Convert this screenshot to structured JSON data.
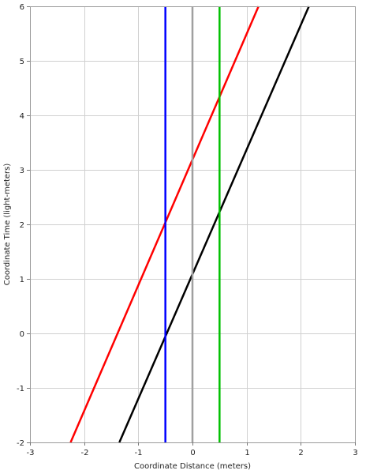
{
  "chart_data": {
    "type": "line",
    "title": "",
    "xlabel": "Coordinate Distance (meters)",
    "ylabel": "Coordinate Time (light-meters)",
    "xlim": [
      -3,
      3
    ],
    "ylim": [
      -2,
      6
    ],
    "xticks": [
      -3,
      -2,
      -1,
      0,
      1,
      2,
      3
    ],
    "yticks": [
      -2,
      -1,
      0,
      1,
      2,
      3,
      4,
      5,
      6
    ],
    "grid": true,
    "legend": "none",
    "series": [
      {
        "color": "#000000",
        "x": [
          -1.35,
          2.15
        ],
        "y": [
          -2,
          6
        ]
      },
      {
        "color": "#ff0000",
        "x": [
          -2.25,
          1.22
        ],
        "y": [
          -2,
          6
        ]
      },
      {
        "color": "#0000ff",
        "x": [
          -0.5,
          -0.5
        ],
        "y": [
          -2,
          6
        ]
      },
      {
        "color": "#a0a0a0",
        "x": [
          0,
          0
        ],
        "y": [
          -2,
          6
        ]
      },
      {
        "color": "#00c000",
        "x": [
          0.5,
          0.5
        ],
        "y": [
          -2,
          6
        ]
      }
    ]
  }
}
